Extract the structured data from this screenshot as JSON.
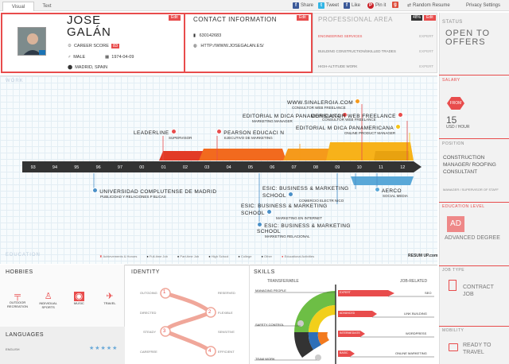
{
  "tabs": [
    {
      "label": "Visual"
    },
    {
      "label": "Text"
    }
  ],
  "share": {
    "share": "Share",
    "tweet": "Tweet",
    "like": "Like",
    "pin": "Pin it",
    "random": "Random Resume",
    "privacy": "Privacy Settings"
  },
  "profile": {
    "first_name": "JOSE",
    "last_name": "GALÁN",
    "edit": "Edit",
    "career_score_label": "CAREER SCORE",
    "career_score": "83",
    "gender": "MALE",
    "birthdate": "1974-04-09",
    "location": "MADRID, SPAIN"
  },
  "contact": {
    "title": "CONTACT INFORMATION",
    "edit": "Edit",
    "phone": "630142683",
    "website": "HTTP://WWW.JOSEGALAN.ES/"
  },
  "professional_area": {
    "title": "PROFESSIONAL AREA",
    "percent": "48%",
    "edit": "Edit",
    "items": [
      {
        "label": "ENGINEERING SERVICES",
        "level": "EXPERT",
        "highlight": true
      },
      {
        "label": "BUILDING CONSTRUCTION/SKILLED TRADES",
        "level": "EXPERT",
        "highlight": false
      },
      {
        "label": "HIGH-ALTITUDE WORK",
        "level": "EXPERT",
        "highlight": false
      }
    ]
  },
  "status": {
    "label": "STATUS",
    "value": "OPEN TO OFFERS"
  },
  "salary": {
    "label": "SALARY",
    "badge": "FROM",
    "amount": "15",
    "unit": "USD / HOUR"
  },
  "position": {
    "label": "POSITION",
    "value": "CONSTRUCTION MANAGER/ ROOFING CONSULTANT",
    "sub": "MANAGER / SUPERVISOR OF STAFF"
  },
  "education_level": {
    "label": "EDUCATION LEVEL",
    "badge": "AD",
    "value": "ADVANCED DEGREE"
  },
  "job_type": {
    "label": "JOB TYPE",
    "value": "CONTRACT JOB"
  },
  "mobility": {
    "label": "MOBILITY",
    "value": "READY TO TRAVEL"
  },
  "work": {
    "title": "WORK",
    "years": [
      "93",
      "94",
      "95",
      "96",
      "97",
      "00",
      "01",
      "02",
      "03",
      "04",
      "05",
      "06",
      "07",
      "08",
      "09",
      "10",
      "11",
      "12"
    ],
    "jobs": [
      {
        "name": "WWW.SINALERGIA.COM",
        "role": "CONSULTOR WEB FREELANCE"
      },
      {
        "name": "EDITORIAL M  DICA PANAMERICANA",
        "role": "MARKETING MANAGER"
      },
      {
        "name": "CONSULTOR WEB FREELANCE",
        "role": "CONSULTOR WEB FREELANCE"
      },
      {
        "name": "LEADERLINE",
        "role": "SUPERVISOR"
      },
      {
        "name": "PEARSON EDUCACI  N",
        "role": "EJECUTIVO DE MARKETING"
      },
      {
        "name": "EDITORIAL M  DICA PANAMERICANA",
        "role": "ONLINE PRODUCT MANAGER"
      }
    ]
  },
  "education": {
    "title": "EDUCATION",
    "items": [
      {
        "name": "UNIVERSIDAD COMPLUTENSE DE MADRID",
        "degree": "PUBLICIDAD Y RELACIONES P  BLICAS"
      },
      {
        "name": "ESIC: BUSINESS & MARKETING SCHOOL",
        "degree": "COMERCIO ELECTR  NICO"
      },
      {
        "name": "ESIC: BUSINESS & MARKETING SCHOOL",
        "degree": "MARKETING EN INTERNET"
      },
      {
        "name": "ESIC: BUSINESS & MARKETING SCHOOL",
        "degree": "MARKETING RELACIONAL"
      },
      {
        "name": "AERCO",
        "degree": "SOCIAL MEDIA"
      }
    ]
  },
  "legend": [
    "Achievements & Honors",
    "Full-time Job",
    "Part-time Job",
    "High School",
    "College",
    "Other",
    "Educational Activities"
  ],
  "brand": "RESUM UP.com",
  "hobbies": {
    "title": "HOBBIES",
    "items": [
      "OUTDOOR RECREATION",
      "INDIVIDUAL SPORTS",
      "MUSIC",
      "TRAVEL"
    ]
  },
  "languages": {
    "title": "LANGUAGES",
    "items": [
      {
        "name": "ENGLISH",
        "stars": "★★★★★"
      }
    ]
  },
  "identity": {
    "title": "IDENTITY",
    "rows": [
      {
        "left": "OUTGOING",
        "num": "1",
        "right": "RESERVED"
      },
      {
        "left": "DIRECTED",
        "num": "2",
        "right": "FLEXIBLE"
      },
      {
        "left": "STEADY",
        "num": "3",
        "right": "SENSITIVE"
      },
      {
        "left": "CAREFREE",
        "num": "4",
        "right": "EFFICIENT"
      }
    ]
  },
  "skills": {
    "title": "SKILLS",
    "transferable": "TRANSFERABLE",
    "job_related": "JOB-RELATED",
    "left": [
      "MANAGING PEOPLE",
      "SAFETY CONTROL",
      "TEAM WORK"
    ],
    "right": [
      {
        "level": "EXPERT",
        "skill": "SEO"
      },
      {
        "level": "ADVANCED",
        "skill": "LINK BUILDING"
      },
      {
        "level": "INTERMEDIATE",
        "skill": "WORDPRESS"
      },
      {
        "level": "BASIC",
        "skill": "ONLINE MARKETING"
      }
    ]
  }
}
